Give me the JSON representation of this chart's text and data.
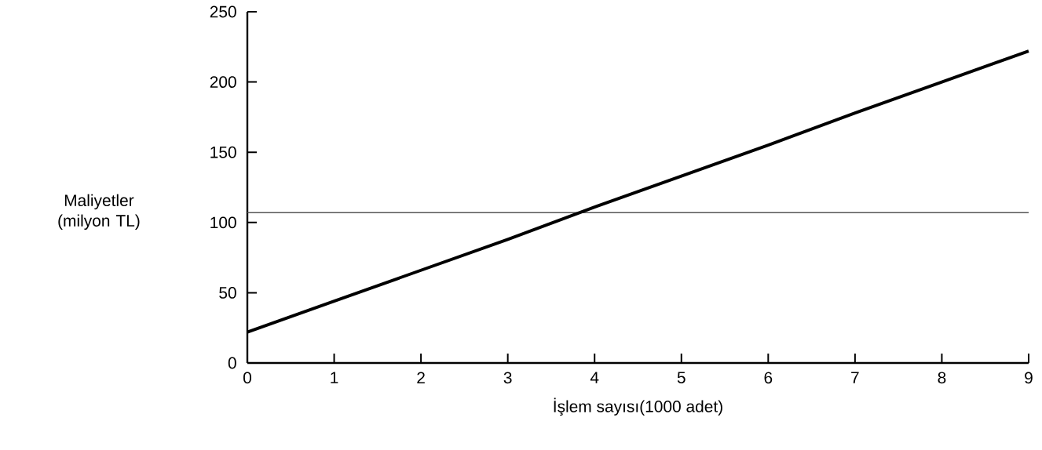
{
  "chart_data": {
    "type": "line",
    "xlabel": "İşlem sayısı(1000 adet)",
    "ylabel": "Maliyetler (milyon TL)",
    "x": [
      0,
      1,
      2,
      3,
      4,
      5,
      6,
      7,
      8,
      9
    ],
    "series": [
      {
        "color": "#000000",
        "values": [
          22,
          44,
          66,
          88,
          111,
          133,
          155,
          178,
          200,
          222
        ]
      }
    ],
    "xlim": [
      0,
      9
    ],
    "ylim": [
      0,
      250
    ],
    "xticks": [
      0,
      1,
      2,
      3,
      4,
      5,
      6,
      7,
      8,
      9
    ],
    "yticks": [
      0,
      50,
      100,
      150,
      200,
      250
    ],
    "ref_lines": [
      {
        "axis": "y",
        "value": 107,
        "color": "#555555"
      }
    ]
  }
}
